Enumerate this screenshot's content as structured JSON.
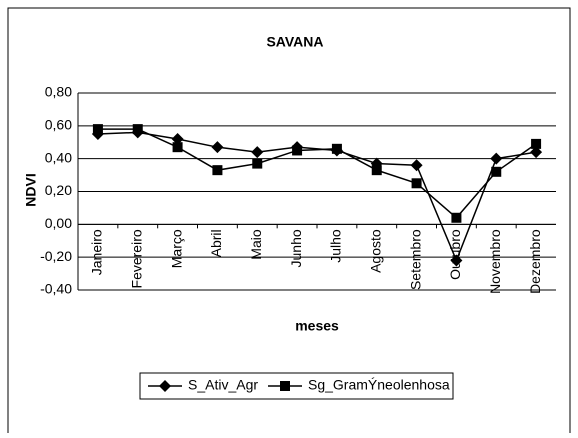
{
  "chart_data": {
    "type": "line",
    "title": "SAVANA",
    "y_label": "NDVI",
    "x_label": "meses",
    "categories": [
      "Janeiro",
      "Fevereiro",
      "Março",
      "Abril",
      "Maio",
      "Junho",
      "Julho",
      "Agosto",
      "Setembro",
      "Outubro",
      "Novembro",
      "Dezembro"
    ],
    "series": [
      {
        "name": "S_Ativ_Agr",
        "color": "#000000",
        "marker": "diamond",
        "values": [
          0.55,
          0.56,
          0.52,
          0.47,
          0.44,
          0.47,
          0.45,
          0.37,
          0.36,
          -0.22,
          0.4,
          0.44
        ]
      },
      {
        "name": "Sg_GramÝneolenhosa",
        "color": "#000000",
        "marker": "square",
        "values": [
          0.58,
          0.58,
          0.47,
          0.33,
          0.37,
          0.45,
          0.46,
          0.33,
          0.25,
          0.04,
          0.32,
          0.49
        ]
      }
    ],
    "ylim": [
      -0.4,
      0.8
    ],
    "yticks": [
      {
        "value": -0.4,
        "label": "-0,40"
      },
      {
        "value": -0.2,
        "label": "-0,20"
      },
      {
        "value": 0,
        "label": "0,00"
      },
      {
        "value": 0.2,
        "label": "0,20"
      },
      {
        "value": 0.4,
        "label": "0,40"
      },
      {
        "value": 0.6,
        "label": "0,60"
      },
      {
        "value": 0.8,
        "label": "0,80"
      }
    ],
    "grid": true,
    "legend": "bottom"
  }
}
